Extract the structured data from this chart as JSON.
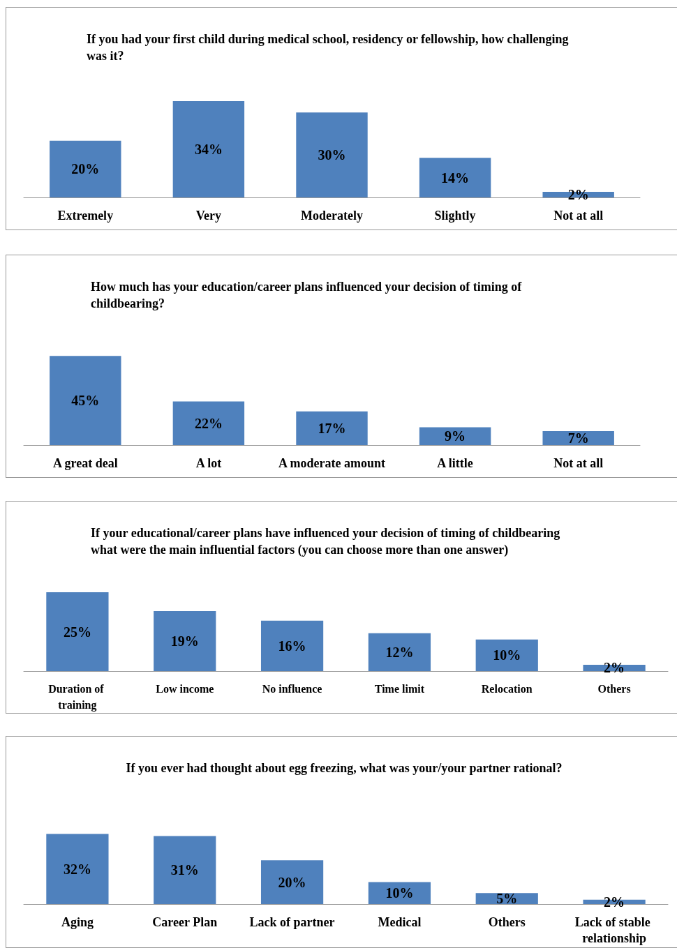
{
  "chart_data": [
    {
      "type": "bar",
      "title": "If you had your first child during medical school, residency or fellowship, how challenging was it?",
      "categories": [
        "Extremely",
        "Very",
        "Moderately",
        "Slightly",
        "Not at all"
      ],
      "values": [
        20,
        34,
        30,
        14,
        2
      ],
      "value_labels": [
        "20%",
        "34%",
        "30%",
        "14%",
        "2%"
      ],
      "color": "#4f81bd"
    },
    {
      "type": "bar",
      "title": "How much has your education/career plans influenced your decision of timing of childbearing?",
      "categories": [
        "A great deal",
        "A lot",
        "A moderate amount",
        "A little",
        "Not at all"
      ],
      "values": [
        45,
        22,
        17,
        9,
        7
      ],
      "value_labels": [
        "45%",
        "22%",
        "17%",
        "9%",
        "7%"
      ],
      "color": "#4f81bd"
    },
    {
      "type": "bar",
      "title": "If your educational/career plans have influenced your decision of timing of childbearing what were the main influential factors (you can choose more than one answer)",
      "categories": [
        "Duration of training",
        "Low income",
        "No influence",
        "Time limit",
        "Relocation",
        "Others"
      ],
      "values": [
        25,
        19,
        16,
        12,
        10,
        2
      ],
      "value_labels": [
        "25%",
        "19%",
        "16%",
        "12%",
        "10%",
        "2%"
      ],
      "color": "#4f81bd"
    },
    {
      "type": "bar",
      "title": "If you ever had thought about egg freezing, what was your/your partner rational?",
      "categories": [
        "Aging",
        "Career Plan",
        "Lack of partner",
        "Medical",
        "Others",
        "Lack of stable relationship"
      ],
      "values": [
        32,
        31,
        20,
        10,
        5,
        2
      ],
      "value_labels": [
        "32%",
        "31%",
        "20%",
        "10%",
        "5%",
        "2%"
      ],
      "color": "#4f81bd"
    }
  ]
}
